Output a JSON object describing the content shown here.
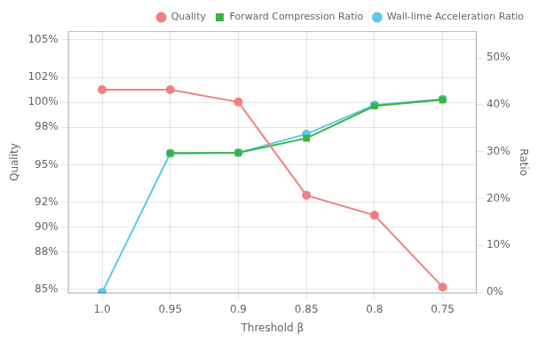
{
  "chart_data": {
    "type": "line",
    "xlabel": "Threshold β",
    "ylabel": "Quality",
    "y2label": "Ratio",
    "x": [
      {
        "value": 1.0,
        "label": "1.0"
      },
      0.95,
      0.9,
      0.85,
      0.8,
      0.75
    ],
    "xlim": [
      1.025,
      0.725
    ],
    "xticks": [
      {
        "value": 1.0,
        "label": "1.0"
      },
      0.95,
      0.9,
      0.85,
      0.8,
      0.75
    ],
    "ylim": [
      0.847,
      1.057
    ],
    "yticks": [
      {
        "value": 0.85,
        "label": "85%"
      },
      {
        "value": 0.88,
        "label": "88%"
      },
      {
        "value": 0.9,
        "label": "90%"
      },
      {
        "value": 0.92,
        "label": "92%"
      },
      {
        "value": 0.95,
        "label": "95%"
      },
      {
        "value": 0.98,
        "label": "98%"
      },
      {
        "value": 1.0,
        "label": "100%"
      },
      {
        "value": 1.02,
        "label": "102%"
      },
      {
        "value": 1.05,
        "label": "105%"
      }
    ],
    "y2lim": [
      -0.002,
      0.557
    ],
    "y2ticks": [
      {
        "value": 0.0,
        "label": "0%"
      },
      {
        "value": 0.1,
        "label": "10%"
      },
      {
        "value": 0.2,
        "label": "20%"
      },
      {
        "value": 0.3,
        "label": "30%"
      },
      {
        "value": 0.4,
        "label": "40%"
      },
      {
        "value": 0.5,
        "label": "50%"
      }
    ],
    "series": [
      {
        "name": "Quality",
        "color": "#f08080",
        "marker": "o",
        "line_style": "solid",
        "values": [
          1.0101,
          1.0101,
          1.0002,
          0.9255,
          0.9095,
          0.852
        ]
      },
      {
        "name": "Forward Compression Ratio",
        "color": "#3db33d",
        "marker": "s",
        "line_style": "solid",
        "axis": "y2",
        "values": [
          null,
          0.2965,
          0.2975,
          0.3285,
          0.3975,
          0.4105
        ]
      },
      {
        "name": "Wall-lime Acceleration Ratio",
        "color": "#5bc8e8",
        "marker": "o",
        "line_style": "solid",
        "axis": "y2",
        "values": [
          0.0,
          0.2965,
          0.2975,
          0.3375,
          0.3995,
          0.4115
        ]
      }
    ],
    "grid": true,
    "legend": "upper right"
  }
}
